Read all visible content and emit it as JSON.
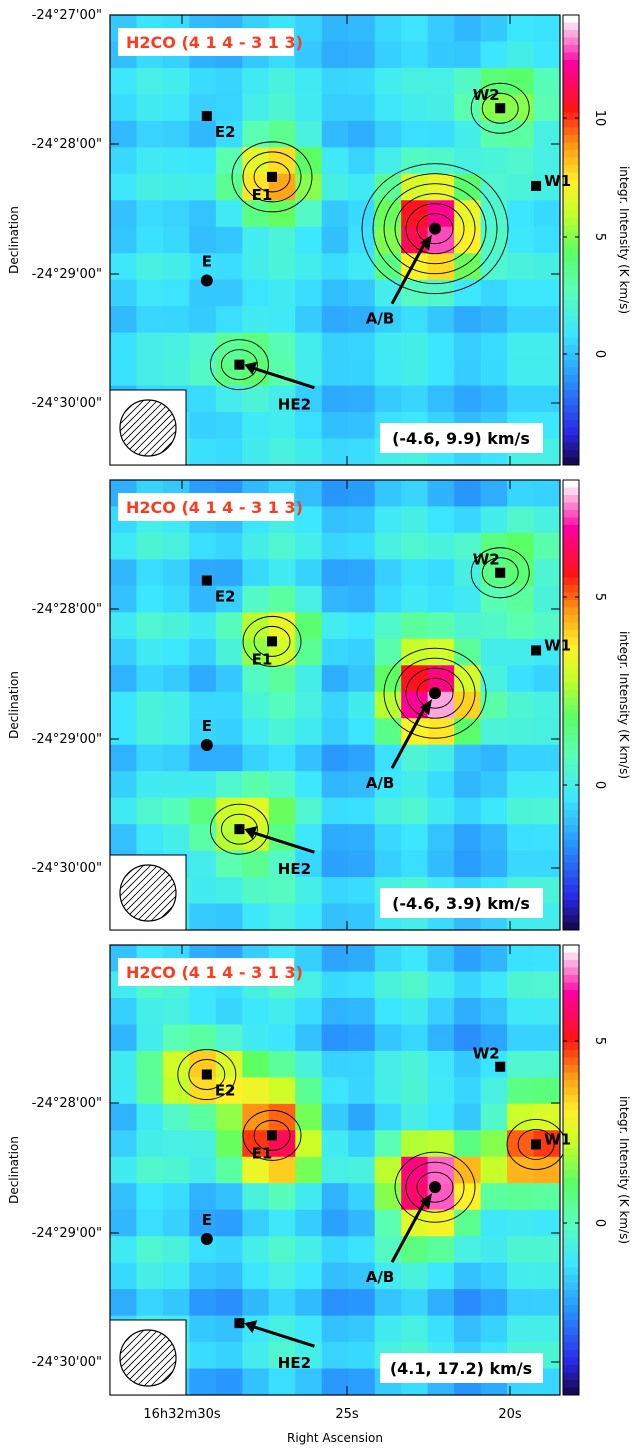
{
  "figure": {
    "x_axis_title": "Right Ascension",
    "y_axis_title": "Declination",
    "x_tick_labels": [
      "16h32m30s",
      "25s",
      "20s"
    ],
    "colorbar_title": "integr. Intensity (K km/s)"
  },
  "chart_data": [
    {
      "type": "heatmap",
      "molecule_label": "H2CO (4 1 4 - 3 1 3)",
      "velocity_range_label": "(-4.6, 9.9) km/s",
      "y_tick_labels": [
        "-24°27'00\"",
        "-24°28'00\"",
        "-24°29'00\"",
        "-24°30'00\""
      ],
      "colorbar_ticks": [
        0,
        5,
        10
      ],
      "colorbar_range": [
        -5,
        14
      ],
      "sources": [
        {
          "name": "E2",
          "ra_offset": -4.3,
          "dec_offset": 0.78,
          "marker": "square"
        },
        {
          "name": "E1",
          "ra_offset": -2.3,
          "dec_offset": 1.25,
          "marker": "square"
        },
        {
          "name": "E",
          "ra_offset": -4.3,
          "dec_offset": 2.05,
          "marker": "circle"
        },
        {
          "name": "W2",
          "ra_offset": 4.7,
          "dec_offset": 0.72,
          "marker": "square"
        },
        {
          "name": "W1",
          "ra_offset": 5.8,
          "dec_offset": 1.32,
          "marker": "square"
        },
        {
          "name": "A/B",
          "ra_offset": 2.7,
          "dec_offset": 1.65,
          "marker": "circle"
        },
        {
          "name": "HE2",
          "ra_offset": -3.3,
          "dec_offset": 2.7,
          "marker": "square"
        }
      ],
      "peak_values": [
        {
          "source": "A/B",
          "value": 14
        },
        {
          "source": "E1",
          "value": 8
        },
        {
          "source": "W2",
          "value": 5
        },
        {
          "source": "HE2",
          "value": 4
        }
      ]
    },
    {
      "type": "heatmap",
      "molecule_label": "H2CO (4 1 4 - 3 1 3)",
      "velocity_range_label": "(-4.6, 3.9) km/s",
      "y_tick_labels": [
        "-24°28'00\"",
        "-24°29'00\"",
        "-24°30'00\""
      ],
      "colorbar_ticks": [
        0,
        5
      ],
      "colorbar_range": [
        -5,
        9
      ],
      "sources": [
        {
          "name": "E2",
          "ra_offset": -4.3,
          "dec_offset": 0.78,
          "marker": "square"
        },
        {
          "name": "E1",
          "ra_offset": -2.3,
          "dec_offset": 1.25,
          "marker": "square"
        },
        {
          "name": "E",
          "ra_offset": -4.3,
          "dec_offset": 2.05,
          "marker": "circle"
        },
        {
          "name": "W2",
          "ra_offset": 4.7,
          "dec_offset": 0.72,
          "marker": "square"
        },
        {
          "name": "W1",
          "ra_offset": 5.8,
          "dec_offset": 1.32,
          "marker": "square"
        },
        {
          "name": "A/B",
          "ra_offset": 2.7,
          "dec_offset": 1.65,
          "marker": "circle"
        },
        {
          "name": "HE2",
          "ra_offset": -3.3,
          "dec_offset": 2.7,
          "marker": "square"
        }
      ],
      "peak_values": [
        {
          "source": "A/B",
          "value": 9
        },
        {
          "source": "HE2",
          "value": 4
        },
        {
          "source": "E1",
          "value": 3
        },
        {
          "source": "W2",
          "value": 2
        }
      ]
    },
    {
      "type": "heatmap",
      "molecule_label": "H2CO (4 1 4 - 3 1 3)",
      "velocity_range_label": "(4.1, 17.2) km/s",
      "y_tick_labels": [
        "-24°28'00\"",
        "-24°29'00\"",
        "-24°30'00\""
      ],
      "colorbar_ticks": [
        0,
        5
      ],
      "colorbar_range": [
        -5,
        8
      ],
      "sources": [
        {
          "name": "E2",
          "ra_offset": -4.3,
          "dec_offset": 0.78,
          "marker": "square"
        },
        {
          "name": "E1",
          "ra_offset": -2.3,
          "dec_offset": 1.25,
          "marker": "square"
        },
        {
          "name": "E",
          "ra_offset": -4.3,
          "dec_offset": 2.05,
          "marker": "circle"
        },
        {
          "name": "W2",
          "ra_offset": 4.7,
          "dec_offset": 0.72,
          "marker": "square"
        },
        {
          "name": "W1",
          "ra_offset": 5.8,
          "dec_offset": 1.32,
          "marker": "square"
        },
        {
          "name": "A/B",
          "ra_offset": 2.7,
          "dec_offset": 1.65,
          "marker": "circle"
        },
        {
          "name": "HE2",
          "ra_offset": -3.3,
          "dec_offset": 2.7,
          "marker": "square"
        }
      ],
      "peak_values": [
        {
          "source": "A/B",
          "value": 8
        },
        {
          "source": "E1",
          "value": 6
        },
        {
          "source": "W1",
          "value": 5
        },
        {
          "source": "E2",
          "value": 4
        }
      ]
    }
  ]
}
